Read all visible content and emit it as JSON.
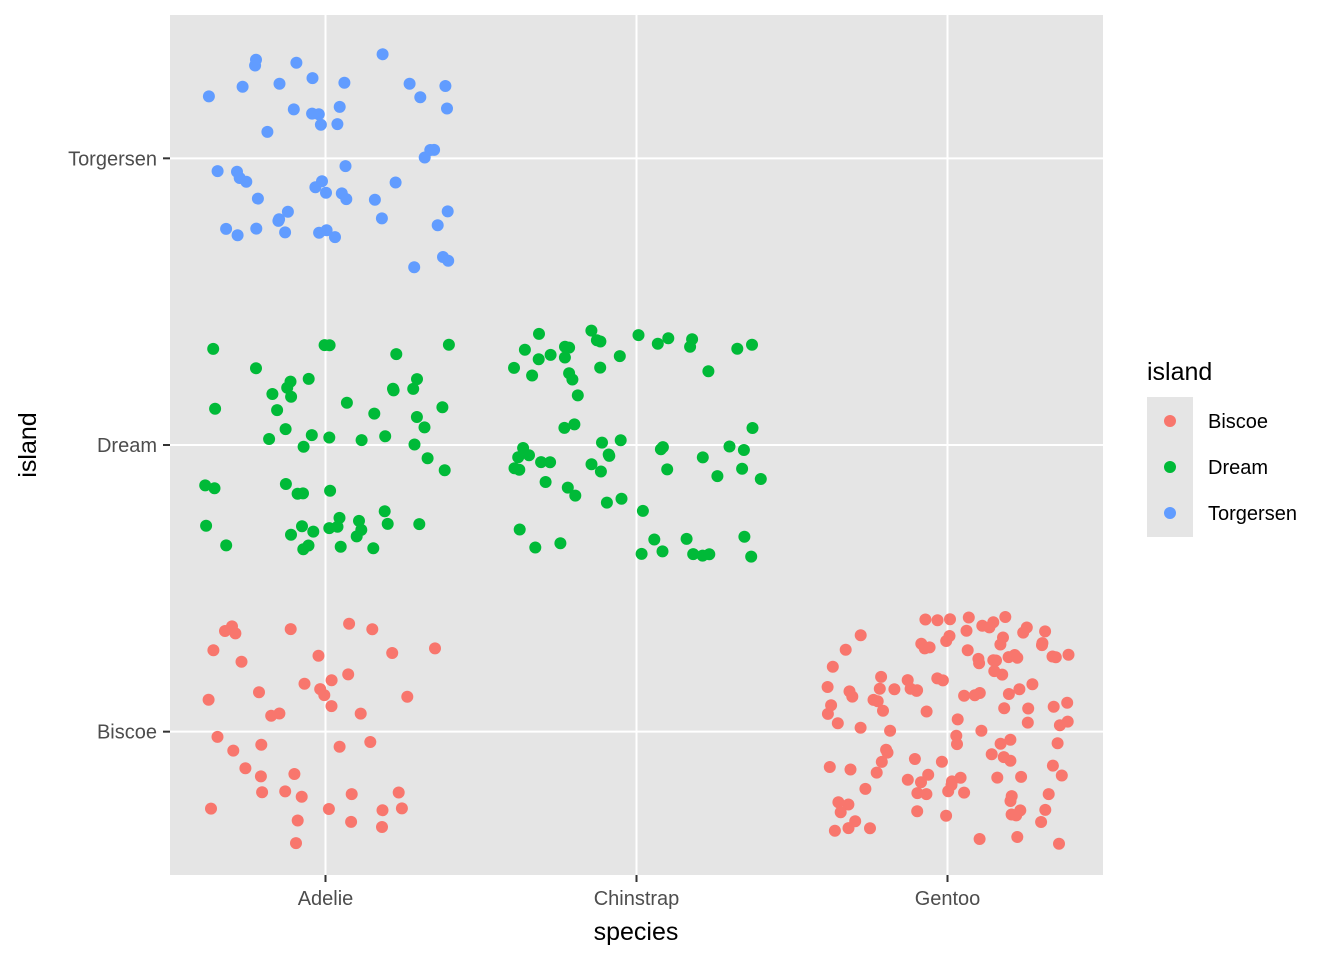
{
  "chart_data": {
    "type": "scatter",
    "geom": "jitter",
    "x_categories": [
      "Adelie",
      "Chinstrap",
      "Gentoo"
    ],
    "y_categories": [
      "Biscoe",
      "Dream",
      "Torgersen"
    ],
    "xlabel": "species",
    "ylabel": "island",
    "grid": true,
    "legend": {
      "title": "island",
      "position": "right",
      "entries": [
        "Biscoe",
        "Dream",
        "Torgersen"
      ]
    },
    "colors": {
      "Biscoe": "#F8766D",
      "Dream": "#00BA38",
      "Torgersen": "#619CFF",
      "panel": "#E5E5E5",
      "grid": "#FFFFFF"
    },
    "counts": [
      {
        "species": "Adelie",
        "island": "Biscoe",
        "count": 44
      },
      {
        "species": "Adelie",
        "island": "Dream",
        "count": 56
      },
      {
        "species": "Adelie",
        "island": "Torgersen",
        "count": 52
      },
      {
        "species": "Chinstrap",
        "island": "Dream",
        "count": 68
      },
      {
        "species": "Gentoo",
        "island": "Biscoe",
        "count": 124
      }
    ],
    "jitter": {
      "width": 0.4,
      "height": 0.4
    }
  }
}
